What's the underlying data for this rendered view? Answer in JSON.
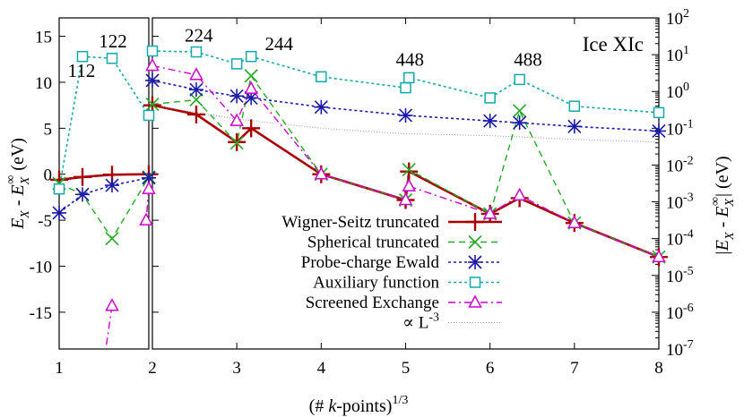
{
  "chart_data": {
    "type": "line",
    "title": "Ice XIc",
    "xlabel": "(# k-points)^{1/3}",
    "xlabel_parts": {
      "pre": "(# ",
      "k": "k",
      "mid": "-points)",
      "sup": "1/3"
    },
    "ylabel_left": "E_X - E_X^∞ (eV)",
    "ylabel_left_parts": {
      "e1": "E",
      "s1": "X",
      "dash": " - E",
      "s2": "X",
      "sup2": "∞",
      "unit": " (eV)"
    },
    "ylabel_right": "|E_X - E_X^∞| (eV)",
    "ylabel_right_parts": {
      "bar1": "|E",
      "s1": "X",
      "dash": " - E",
      "s2": "X",
      "sup2": "∞",
      "bar2": "|",
      "unit": " (eV)"
    },
    "xlim": [
      1,
      8
    ],
    "ylim_left": [
      -19,
      17
    ],
    "ylim_right_log": [
      1e-07,
      100
    ],
    "xticks": [
      1,
      2,
      3,
      4,
      5,
      6,
      7,
      8
    ],
    "yticks_left": [
      15,
      10,
      5,
      0,
      -5,
      -10,
      -15
    ],
    "yticks_right_exponents": [
      2,
      1,
      0,
      -1,
      -2,
      -3,
      -4,
      -5,
      -6,
      -7
    ],
    "annotations": [
      {
        "text": "112",
        "x": 1.25,
        "y": 10.6
      },
      {
        "text": "122",
        "x": 1.6,
        "y": 13.8
      },
      {
        "text": "224",
        "x": 2.55,
        "y": 14.4
      },
      {
        "text": "244",
        "x": 3.5,
        "y": 13.5
      },
      {
        "text": "448",
        "x": 5.05,
        "y": 11.8
      },
      {
        "text": "488",
        "x": 6.45,
        "y": 11.8
      }
    ],
    "series": [
      {
        "name": "Wigner-Seitz truncated",
        "color": "#aa0000",
        "marker": "plus",
        "dash": "solid",
        "left": [
          [
            1,
            -0.6
          ],
          [
            1.26,
            -0.3
          ],
          [
            1.59,
            -0.05
          ],
          [
            2,
            0.0
          ]
        ],
        "right": [
          [
            2,
            7.5
          ],
          [
            2.52,
            6.5
          ],
          [
            3,
            3.5
          ],
          [
            3.17,
            5.0
          ],
          [
            4,
            0.0
          ],
          [
            5,
            -2.8
          ],
          [
            5.04,
            0.3
          ],
          [
            6,
            -4.3
          ],
          [
            6.35,
            -2.6
          ],
          [
            7,
            -5.3
          ],
          [
            8,
            -9.0
          ]
        ]
      },
      {
        "name": "Spherical truncated",
        "color": "#22aa22",
        "marker": "x",
        "dash": "dashed",
        "left": [
          [
            1,
            -1.0
          ],
          [
            1.26,
            -2.2
          ],
          [
            1.59,
            -7.0
          ],
          [
            2,
            -0.3
          ]
        ],
        "right": [
          [
            2,
            7.6
          ],
          [
            2.52,
            8.1
          ],
          [
            3,
            3.4
          ],
          [
            3.17,
            10.7
          ],
          [
            4,
            0.0
          ],
          [
            5,
            -2.8
          ],
          [
            5.04,
            0.5
          ],
          [
            6,
            -4.3
          ],
          [
            6.35,
            6.9
          ],
          [
            7,
            -5.3
          ],
          [
            8,
            -9.0
          ]
        ]
      },
      {
        "name": "Probe-charge Ewald",
        "color": "#1a1aaa",
        "marker": "star",
        "dash": "dotted",
        "left": [
          [
            1,
            -4.2
          ],
          [
            1.26,
            -2.2
          ],
          [
            1.59,
            -1.2
          ],
          [
            2,
            -0.4
          ]
        ],
        "right": [
          [
            2,
            10.2
          ],
          [
            2.52,
            9.2
          ],
          [
            3,
            8.5
          ],
          [
            3.17,
            8.3
          ],
          [
            4,
            7.3
          ],
          [
            5,
            6.4
          ],
          [
            6,
            5.8
          ],
          [
            6.35,
            5.6
          ],
          [
            7,
            5.2
          ],
          [
            8,
            4.7
          ]
        ]
      },
      {
        "name": "Auxiliary function",
        "color": "#10aaaa",
        "marker": "square",
        "dash": "dotted",
        "left": [
          [
            1,
            -1.6
          ],
          [
            1.26,
            12.8
          ],
          [
            1.59,
            12.6
          ],
          [
            2,
            6.4
          ]
        ],
        "right": [
          [
            2,
            13.4
          ],
          [
            2.52,
            13.3
          ],
          [
            3,
            12.0
          ],
          [
            3.17,
            12.8
          ],
          [
            4,
            10.6
          ],
          [
            5,
            9.4
          ],
          [
            5.04,
            10.5
          ],
          [
            6,
            8.3
          ],
          [
            6.35,
            10.3
          ],
          [
            7,
            7.4
          ],
          [
            8,
            6.7
          ]
        ]
      },
      {
        "name": "Screened Exchange",
        "color": "#cc00cc",
        "marker": "triangle",
        "dash": "dashdot",
        "left": [
          [
            1.59,
            -14.3
          ],
          [
            1.52,
            -19.0
          ],
          null,
          [
            2,
            -1.6
          ],
          [
            1.97,
            -5.0
          ]
        ],
        "right": [
          [
            2,
            11.8
          ],
          [
            2.52,
            10.8
          ],
          [
            3,
            5.8
          ],
          [
            3.17,
            9.3
          ],
          [
            4,
            0.0
          ],
          [
            5,
            -2.8
          ],
          [
            5.04,
            -1.3
          ],
          [
            6,
            -4.3
          ],
          [
            6.35,
            -2.3
          ],
          [
            7,
            -5.3
          ],
          [
            8,
            -9.0
          ]
        ]
      },
      {
        "name": "∝ L^-3",
        "legend_text": "∝ L",
        "legend_sup": "-3",
        "color": "#999999",
        "marker": "none",
        "dash": "finedotted",
        "left": [],
        "right": [
          [
            2,
            7.5
          ],
          [
            3,
            6.0
          ],
          [
            4,
            5.0
          ],
          [
            5,
            4.4
          ],
          [
            6,
            4.2
          ],
          [
            7,
            3.8
          ],
          [
            8,
            3.5
          ]
        ]
      }
    ]
  }
}
